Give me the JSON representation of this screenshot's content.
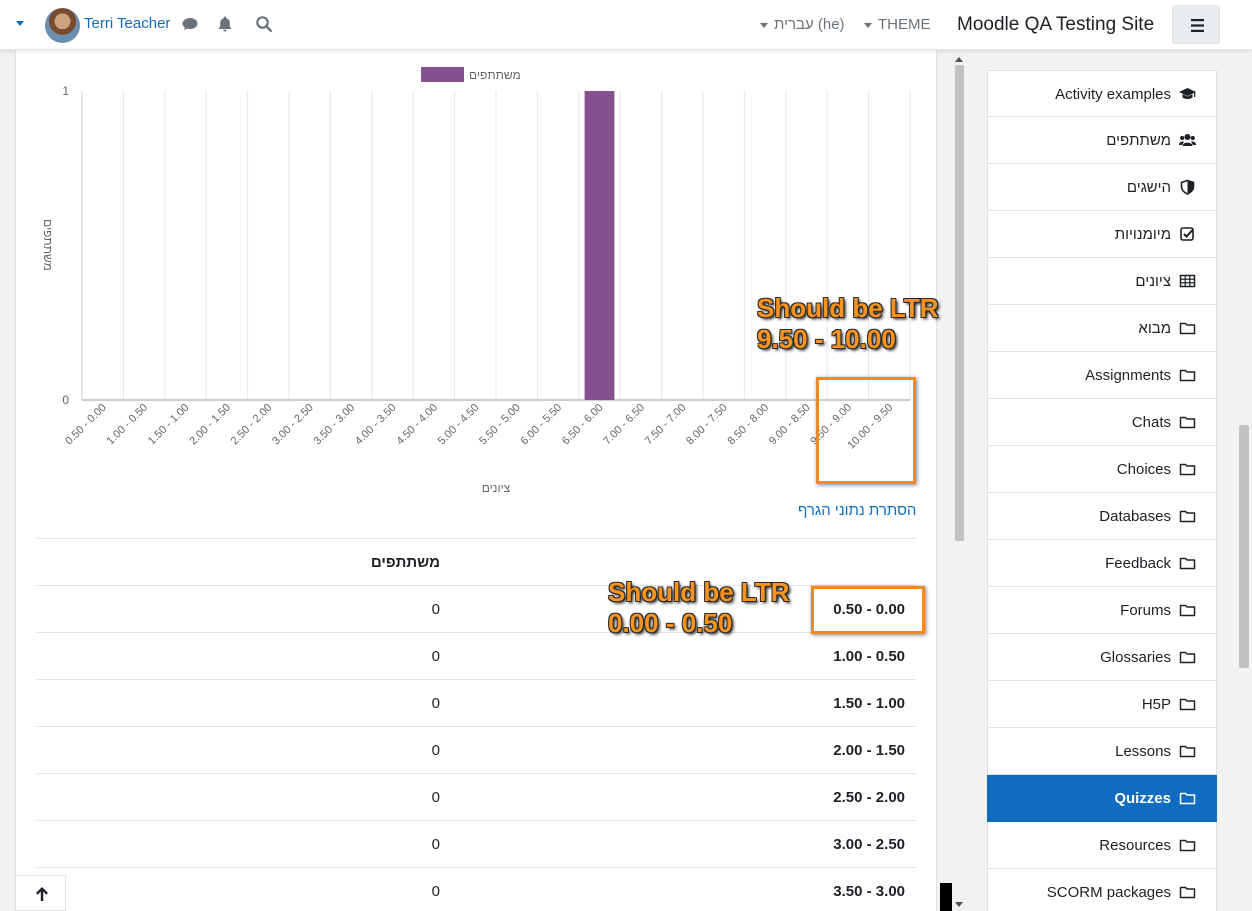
{
  "navbar": {
    "user_name": "Terri Teacher",
    "language": "עברית ‎(he)‎",
    "theme": "THEME",
    "site_name": "Moodle QA Testing Site"
  },
  "chart_data": {
    "type": "bar",
    "legend": "משתתפים",
    "xlabel": "ציונים",
    "ylabel": "משתתפים",
    "ylim": [
      0,
      1
    ],
    "yticks": [
      "0",
      "1"
    ],
    "bar_color": "#85508f",
    "categories": [
      "0.50 - 0.00",
      "1.00 - 0.50",
      "1.50 - 1.00",
      "2.00 - 1.50",
      "2.50 - 2.00",
      "3.00 - 2.50",
      "3.50 - 3.00",
      "4.00 - 3.50",
      "4.50 - 4.00",
      "5.00 - 4.50",
      "5.50 - 5.00",
      "6.00 - 5.50",
      "6.50 - 6.00",
      "7.00 - 6.50",
      "7.50 - 7.00",
      "8.00 - 7.50",
      "8.50 - 8.00",
      "9.00 - 8.50",
      "9.50 - 9.00",
      "10.00 - 9.50"
    ],
    "values": [
      0,
      0,
      0,
      0,
      0,
      0,
      0,
      0,
      0,
      0,
      0,
      0,
      1,
      0,
      0,
      0,
      0,
      0,
      0,
      0
    ]
  },
  "toggle_link": "הסתרת נתוני הגרף",
  "table": {
    "header": "משתתפים",
    "rows": [
      {
        "range": "0.50 - 0.00",
        "count": "0"
      },
      {
        "range": "1.00 - 0.50",
        "count": "0"
      },
      {
        "range": "1.50 - 1.00",
        "count": "0"
      },
      {
        "range": "2.00 - 1.50",
        "count": "0"
      },
      {
        "range": "2.50 - 2.00",
        "count": "0"
      },
      {
        "range": "3.00 - 2.50",
        "count": "0"
      },
      {
        "range": "3.50 - 3.00",
        "count": "0"
      }
    ]
  },
  "annotations": {
    "chart_note": "Should be LTR\n9.50 - 10.00",
    "table_note": "Should be LTR\n0.00 - 0.50",
    "color": "#f7931e"
  },
  "drawer": {
    "items": [
      {
        "label": "Activity examples",
        "icon": "graduation-cap-icon"
      },
      {
        "label": "משתתפים",
        "icon": "users-icon"
      },
      {
        "label": "הישגים",
        "icon": "shield-icon"
      },
      {
        "label": "מיומנויות",
        "icon": "checkbox-icon"
      },
      {
        "label": "ציונים",
        "icon": "table-icon"
      },
      {
        "label": "מבוא",
        "icon": "folder-icon"
      },
      {
        "label": "Assignments",
        "icon": "folder-icon"
      },
      {
        "label": "Chats",
        "icon": "folder-icon"
      },
      {
        "label": "Choices",
        "icon": "folder-icon"
      },
      {
        "label": "Databases",
        "icon": "folder-icon"
      },
      {
        "label": "Feedback",
        "icon": "folder-icon"
      },
      {
        "label": "Forums",
        "icon": "folder-icon"
      },
      {
        "label": "Glossaries",
        "icon": "folder-icon"
      },
      {
        "label": "H5P",
        "icon": "folder-icon"
      },
      {
        "label": "Lessons",
        "icon": "folder-icon"
      },
      {
        "label": "Quizzes",
        "icon": "folder-icon",
        "active": true
      },
      {
        "label": "Resources",
        "icon": "folder-icon"
      },
      {
        "label": "SCORM packages",
        "icon": "folder-icon"
      }
    ]
  }
}
